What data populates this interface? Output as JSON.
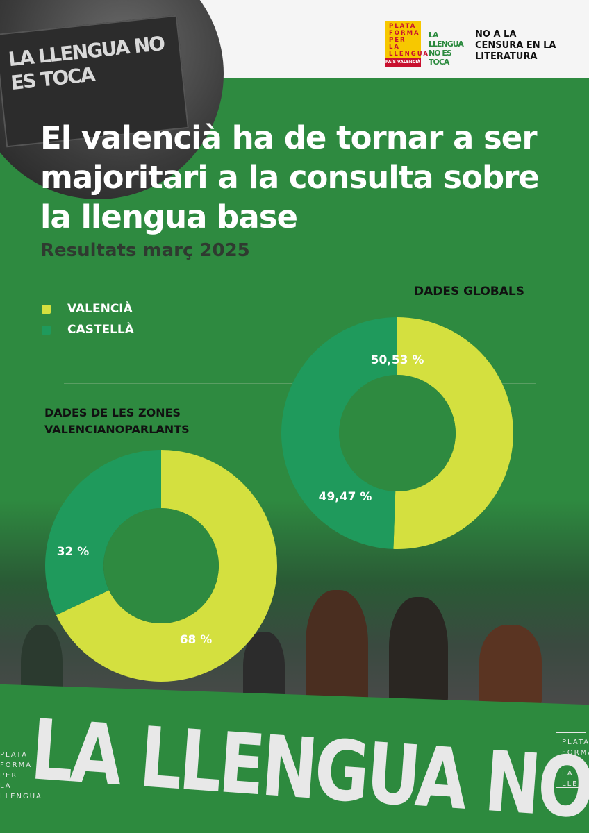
{
  "header": {
    "logos": {
      "plataforma": "PLATA FORMA PER LA LLENGUA",
      "plataforma_region": "PAÍS VALENCIÀ",
      "campaign": "LA LLENGUA NO ES TOCA",
      "censorship": "NO A LA CENSURA EN LA LITERATURA"
    },
    "photo_banner_text": "LA LLENGUA NO ES TOCA"
  },
  "title": "El valencià ha de tornar a ser  majoritari a la consulta sobre la llengua base",
  "subtitle": "Resultats març 2025",
  "legend": [
    {
      "label": "VALENCIÀ",
      "color": "#d4e03f"
    },
    {
      "label": "CASTELLÀ",
      "color": "#1f9a5c"
    }
  ],
  "colors": {
    "background": "#2e8a40",
    "valencia": "#d4e03f",
    "castella": "#1f9a5c",
    "hole": "#2e8a40"
  },
  "chart_data": [
    {
      "type": "pie",
      "title": "DADES GLOBALS",
      "categories": [
        "VALENCIÀ",
        "CASTELLÀ"
      ],
      "values": [
        50.53,
        49.47
      ],
      "labels": [
        "50,53 %",
        "49,47 %"
      ]
    },
    {
      "type": "pie",
      "title": "DADES DE LES ZONES VALENCIANOPARLANTS",
      "categories": [
        "VALENCIÀ",
        "CASTELLÀ"
      ],
      "values": [
        68,
        32
      ],
      "labels": [
        "68 %",
        "32 %"
      ]
    }
  ],
  "bottom_banner": {
    "text": "LA LLENGUA NO ES TOCA!",
    "logo_left": "PLATA FORMA PER LA LLENGUA",
    "logo_right": "PLATA FORMA PER LA LLENGUA"
  }
}
